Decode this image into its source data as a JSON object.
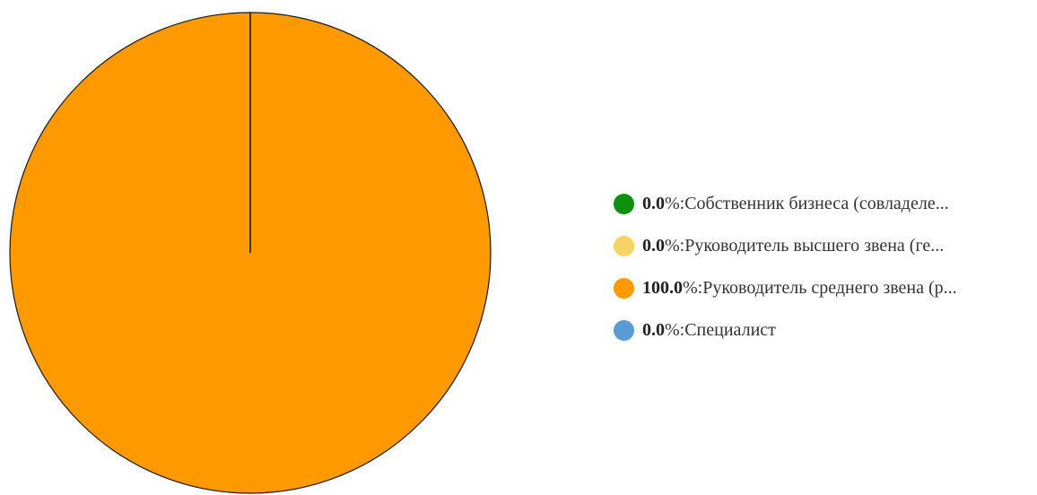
{
  "chart_data": {
    "type": "pie",
    "series": [
      {
        "name": "",
        "values": [
          0.0,
          0.0,
          100.0,
          0.0
        ]
      }
    ],
    "categories": [
      "Собственник бизнеса (совладеле...",
      "Руководитель высшего звена (ге...",
      "Руководитель среднего звена (р...",
      "Специалист"
    ],
    "colors": [
      "#0e8f0e",
      "#f6d365",
      "#ff9900",
      "#5b9bd5"
    ],
    "legend_placement": "right",
    "percent_suffix": "%"
  },
  "legend": {
    "items": [
      {
        "value": "0.0",
        "suffix": "%: ",
        "label": "Собственник бизнеса (совладеле...",
        "color": "#0e8f0e"
      },
      {
        "value": "0.0",
        "suffix": "%: ",
        "label": "Руководитель высшего звена (ге...",
        "color": "#f6d365"
      },
      {
        "value": "100.0",
        "suffix": "%: ",
        "label": "Руководитель среднего звена (р...",
        "color": "#ff9900"
      },
      {
        "value": "0.0",
        "suffix": "%: ",
        "label": "Специалист",
        "color": "#5b9bd5"
      }
    ]
  }
}
